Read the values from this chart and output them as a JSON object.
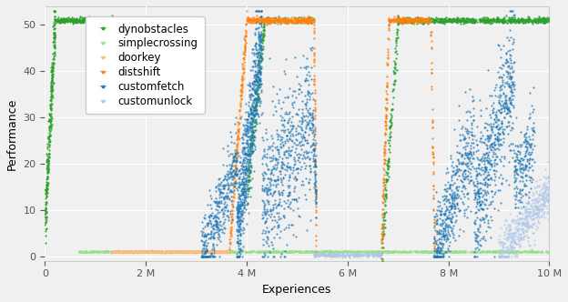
{
  "xlabel": "Experiences",
  "ylabel": "Performance",
  "xlim": [
    0,
    10000000
  ],
  "ylim": [
    -1,
    54
  ],
  "xticks": [
    0,
    2000000,
    4000000,
    6000000,
    8000000,
    10000000
  ],
  "xticklabels": [
    "0",
    "2 M",
    "4 M",
    "6 M",
    "8 M",
    "10 M"
  ],
  "yticks": [
    0,
    10,
    20,
    30,
    40,
    50
  ],
  "legend": [
    {
      "label": "dynobstacles",
      "color": "#2ca02c"
    },
    {
      "label": "simplecrossing",
      "color": "#98df8a"
    },
    {
      "label": "doorkey",
      "color": "#ffbb78"
    },
    {
      "label": "distshift",
      "color": "#ff7f0e"
    },
    {
      "label": "customfetch",
      "color": "#1f77b4"
    },
    {
      "label": "customunlock",
      "color": "#aec7e8"
    }
  ],
  "bg_color": "#f0f0f0",
  "grid_color": "white",
  "figsize": [
    6.24,
    3.32
  ],
  "dpi": 100
}
